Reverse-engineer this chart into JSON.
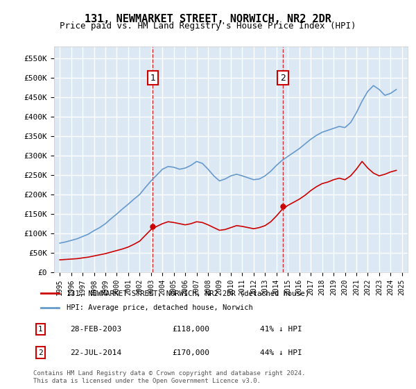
{
  "title": "131, NEWMARKET STREET, NORWICH, NR2 2DR",
  "subtitle": "Price paid vs. HM Land Registry's House Price Index (HPI)",
  "ylabel": "",
  "xlabel": "",
  "ylim": [
    0,
    580000
  ],
  "yticks": [
    0,
    50000,
    100000,
    150000,
    200000,
    250000,
    300000,
    350000,
    400000,
    450000,
    500000,
    550000
  ],
  "ytick_labels": [
    "£0",
    "£50K",
    "£100K",
    "£150K",
    "£200K",
    "£250K",
    "£300K",
    "£350K",
    "£400K",
    "£450K",
    "£500K",
    "£550K"
  ],
  "background_color": "#dce9f5",
  "plot_bg_color": "#dce9f5",
  "grid_color": "#ffffff",
  "sale1": {
    "date_num": 2003.15,
    "price": 118000,
    "label": "1",
    "date_str": "28-FEB-2003",
    "pct": "41%"
  },
  "sale2": {
    "date_num": 2014.55,
    "price": 170000,
    "label": "2",
    "date_str": "22-JUL-2014",
    "pct": "44%"
  },
  "red_line_color": "#cc0000",
  "blue_line_color": "#6699cc",
  "legend_label_red": "131, NEWMARKET STREET, NORWICH, NR2 2DR (detached house)",
  "legend_label_blue": "HPI: Average price, detached house, Norwich",
  "footnote": "Contains HM Land Registry data © Crown copyright and database right 2024.\nThis data is licensed under the Open Government Licence v3.0.",
  "hpi_x": [
    1995,
    1995.5,
    1996,
    1996.5,
    1997,
    1997.5,
    1998,
    1998.5,
    1999,
    1999.5,
    2000,
    2000.5,
    2001,
    2001.5,
    2002,
    2002.5,
    2003,
    2003.5,
    2004,
    2004.5,
    2005,
    2005.5,
    2006,
    2006.5,
    2007,
    2007.5,
    2008,
    2008.5,
    2009,
    2009.5,
    2010,
    2010.5,
    2011,
    2011.5,
    2012,
    2012.5,
    2013,
    2013.5,
    2014,
    2014.5,
    2015,
    2015.5,
    2016,
    2016.5,
    2017,
    2017.5,
    2018,
    2018.5,
    2019,
    2019.5,
    2020,
    2020.5,
    2021,
    2021.5,
    2022,
    2022.5,
    2023,
    2023.5,
    2024,
    2024.5
  ],
  "hpi_y": [
    75000,
    78000,
    82000,
    86000,
    92000,
    98000,
    107000,
    115000,
    125000,
    138000,
    150000,
    163000,
    175000,
    188000,
    200000,
    218000,
    235000,
    250000,
    265000,
    272000,
    270000,
    265000,
    268000,
    275000,
    285000,
    280000,
    265000,
    248000,
    235000,
    240000,
    248000,
    252000,
    248000,
    243000,
    238000,
    240000,
    248000,
    260000,
    275000,
    288000,
    298000,
    308000,
    318000,
    330000,
    342000,
    352000,
    360000,
    365000,
    370000,
    375000,
    372000,
    385000,
    410000,
    440000,
    465000,
    480000,
    470000,
    455000,
    460000,
    470000
  ],
  "red_x": [
    1995,
    1995.5,
    1996,
    1996.5,
    1997,
    1997.5,
    1998,
    1998.5,
    1999,
    1999.5,
    2000,
    2000.5,
    2001,
    2001.5,
    2002,
    2002.5,
    2003,
    2003.5,
    2004,
    2004.5,
    2005,
    2005.5,
    2006,
    2006.5,
    2007,
    2007.5,
    2008,
    2008.5,
    2009,
    2009.5,
    2010,
    2010.5,
    2011,
    2011.5,
    2012,
    2012.5,
    2013,
    2013.5,
    2014,
    2014.5,
    2015,
    2015.5,
    2016,
    2016.5,
    2017,
    2017.5,
    2018,
    2018.5,
    2019,
    2019.5,
    2020,
    2020.5,
    2021,
    2021.5,
    2022,
    2022.5,
    2023,
    2023.5,
    2024,
    2024.5
  ],
  "red_y": [
    32000,
    33000,
    34000,
    35000,
    37000,
    39000,
    42000,
    45000,
    48000,
    52000,
    56000,
    60000,
    65000,
    72000,
    80000,
    95000,
    110000,
    118000,
    125000,
    130000,
    128000,
    125000,
    122000,
    125000,
    130000,
    128000,
    122000,
    115000,
    108000,
    110000,
    115000,
    120000,
    118000,
    115000,
    112000,
    115000,
    120000,
    130000,
    145000,
    162000,
    172000,
    180000,
    188000,
    198000,
    210000,
    220000,
    228000,
    232000,
    238000,
    242000,
    238000,
    248000,
    265000,
    285000,
    268000,
    255000,
    248000,
    252000,
    258000,
    262000
  ]
}
